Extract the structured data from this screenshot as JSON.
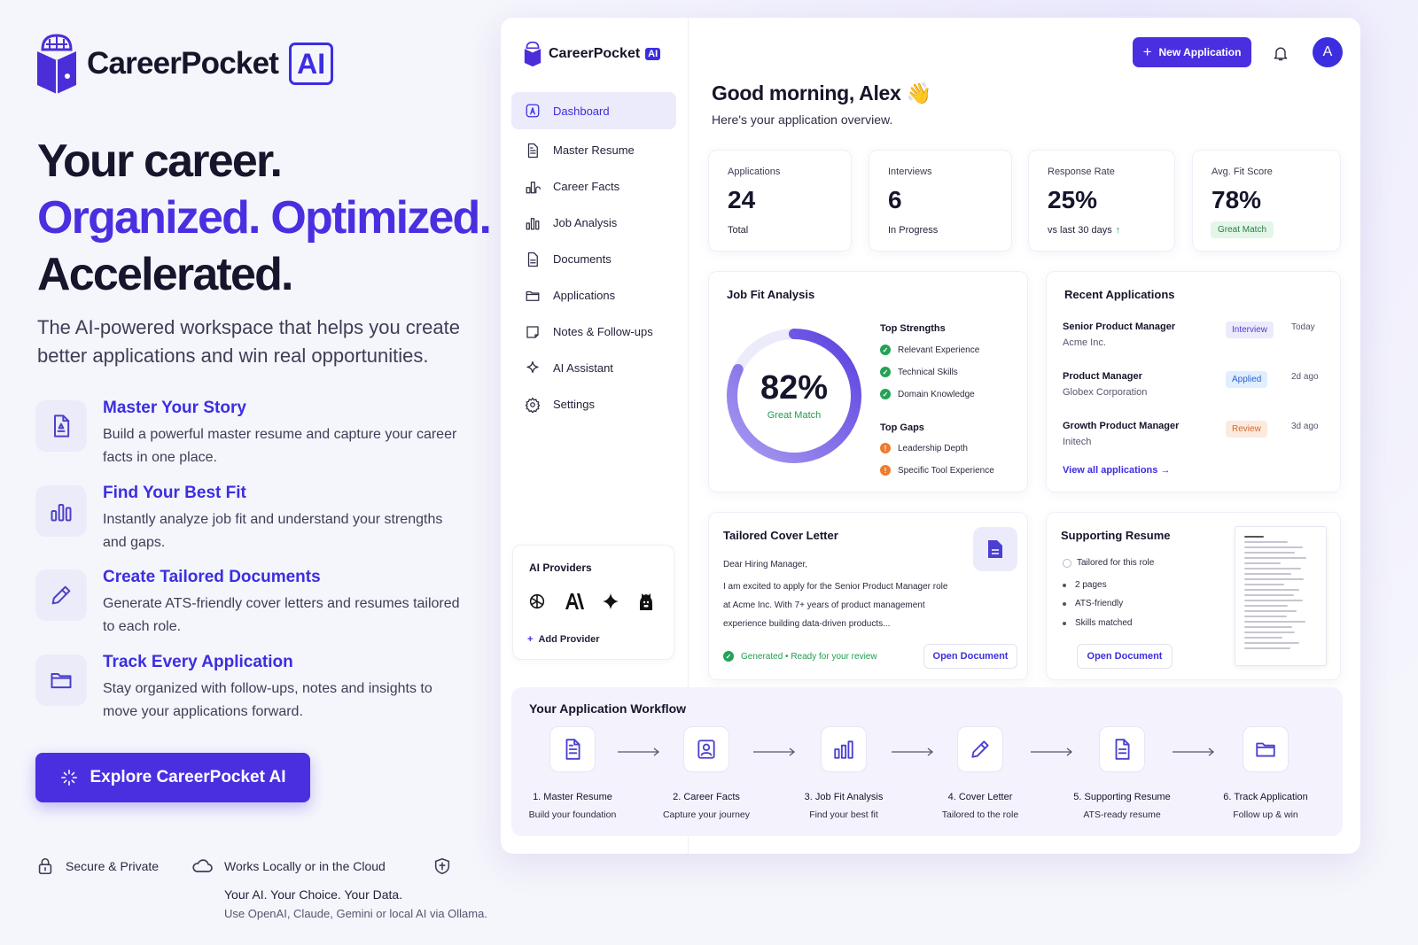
{
  "brand": {
    "name": "CareerPocket",
    "ai": "AI"
  },
  "hero": {
    "line1": "Your career.",
    "line2": "Organized. Optimized.",
    "line3": "Accelerated.",
    "lead": "The AI-powered workspace that helps you create better applications and win real opportunities."
  },
  "features": [
    {
      "title": "Master Your Story",
      "desc": "Build a powerful master resume and capture your career facts in one place.",
      "icon": "document-icon"
    },
    {
      "title": "Find Your Best Fit",
      "desc": "Instantly analyze job fit and understand your strengths and gaps.",
      "icon": "bar-chart-icon"
    },
    {
      "title": "Create Tailored Documents",
      "desc": "Generate ATS-friendly cover letters and resumes tailored to each role.",
      "icon": "pencil-icon"
    },
    {
      "title": "Track Every Application",
      "desc": "Stay organized with follow-ups, notes and insights to move your applications forward.",
      "icon": "folder-icon"
    }
  ],
  "cta": {
    "label": "Explore CareerPocket AI"
  },
  "trust": {
    "secure": "Secure & Private",
    "cloud": "Works Locally or in the Cloud",
    "tagline": "Your AI. Your Choice. Your Data.",
    "tagsub": "Use OpenAI, Claude, Gemini or local AI via Ollama."
  },
  "sidebar": {
    "items": [
      {
        "label": "Dashboard",
        "icon": "dashboard-icon"
      },
      {
        "label": "Master Resume",
        "icon": "resume-icon"
      },
      {
        "label": "Career Facts",
        "icon": "facts-icon"
      },
      {
        "label": "Job Analysis",
        "icon": "chart-icon"
      },
      {
        "label": "Documents",
        "icon": "documents-icon"
      },
      {
        "label": "Applications",
        "icon": "folder-icon"
      },
      {
        "label": "Notes & Follow-ups",
        "icon": "notes-icon"
      },
      {
        "label": "AI Assistant",
        "icon": "sparkle-icon"
      },
      {
        "label": "Settings",
        "icon": "gear-icon"
      }
    ],
    "providers": {
      "title": "AI Providers",
      "add": "Add Provider"
    }
  },
  "topbar": {
    "new_app": "New Application",
    "avatar": "A"
  },
  "greeting": {
    "title": "Good morning, Alex 👋",
    "sub": "Here's your application overview."
  },
  "stats": [
    {
      "label": "Applications",
      "value": "24",
      "sub": "Total"
    },
    {
      "label": "Interviews",
      "value": "6",
      "sub": "In Progress"
    },
    {
      "label": "Response Rate",
      "value": "25%",
      "sub": "vs last 30 days",
      "trend": "↑"
    },
    {
      "label": "Avg. Fit Score",
      "value": "78%",
      "sub": "Great Match"
    }
  ],
  "fit": {
    "title": "Job Fit Analysis",
    "score": "82%",
    "score_value": 0.82,
    "label": "Great Match",
    "strengths_title": "Top Strengths",
    "strengths": [
      "Relevant Experience",
      "Technical Skills",
      "Domain Knowledge"
    ],
    "gaps_title": "Top Gaps",
    "gaps": [
      "Leadership Depth",
      "Specific Tool Experience"
    ]
  },
  "recent": {
    "title": "Recent Applications",
    "rows": [
      {
        "title": "Senior Product Manager",
        "company": "Acme Inc.",
        "status": "Interview",
        "when": "Today"
      },
      {
        "title": "Product Manager",
        "company": "Globex Corporation",
        "status": "Applied",
        "when": "2d ago"
      },
      {
        "title": "Growth Product Manager",
        "company": "Initech",
        "status": "Review",
        "when": "3d ago"
      }
    ],
    "view_all": "View all applications →"
  },
  "cover": {
    "title": "Tailored Cover Letter",
    "salutation": "Dear Hiring Manager,",
    "body1": "I am excited to apply for the Senior Product Manager role",
    "body2": "at Acme Inc. With 7+ years of product management",
    "body3": "experience building data-driven products...",
    "status": "Generated • Ready for your review",
    "open": "Open Document"
  },
  "resume": {
    "title": "Supporting Resume",
    "tailored": "Tailored for this role",
    "bullets": [
      "2 pages",
      "ATS-friendly",
      "Skills matched"
    ],
    "open": "Open Document"
  },
  "workflow": {
    "title": "Your Application Workflow",
    "steps": [
      {
        "title": "1. Master Resume",
        "sub": "Build your foundation",
        "icon": "document-icon"
      },
      {
        "title": "2. Career Facts",
        "sub": "Capture your journey",
        "icon": "profile-icon"
      },
      {
        "title": "3. Job Fit Analysis",
        "sub": "Find your best fit",
        "icon": "bar-chart-icon"
      },
      {
        "title": "4. Cover Letter",
        "sub": "Tailored to the role",
        "icon": "pencil-icon"
      },
      {
        "title": "5. Supporting Resume",
        "sub": "ATS-ready resume",
        "icon": "document-icon"
      },
      {
        "title": "6. Track Application",
        "sub": "Follow up & win",
        "icon": "folder-icon"
      }
    ]
  },
  "colors": {
    "accent": "#4a2fe0",
    "success": "#22a355",
    "warning": "#f07a2c"
  }
}
